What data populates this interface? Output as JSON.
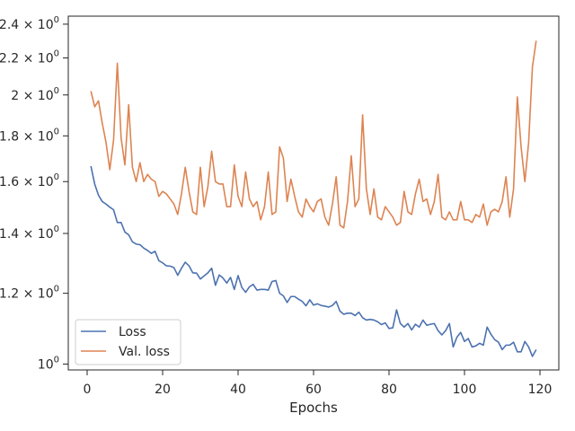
{
  "chart_data": {
    "type": "line",
    "xlabel": "Epochs",
    "ylabel": "",
    "title": "",
    "y_scale": "log",
    "xlim": [
      -5,
      125
    ],
    "ylim": [
      0.985,
      2.45
    ],
    "x_ticks": [
      0,
      20,
      40,
      60,
      80,
      100,
      120
    ],
    "y_ticks": [
      {
        "value": 1.0,
        "label_base": "10",
        "label_exp": "0"
      },
      {
        "value": 1.2,
        "label_base": "1.2 × 10",
        "label_exp": "0"
      },
      {
        "value": 1.4,
        "label_base": "1.4 × 10",
        "label_exp": "0"
      },
      {
        "value": 1.6,
        "label_base": "1.6 × 10",
        "label_exp": "0"
      },
      {
        "value": 1.8,
        "label_base": "1.8 × 10",
        "label_exp": "0"
      },
      {
        "value": 2.0,
        "label_base": "2 × 10",
        "label_exp": "0"
      },
      {
        "value": 2.2,
        "label_base": "2.2 × 10",
        "label_exp": "0"
      },
      {
        "value": 2.4,
        "label_base": "2.4 × 10",
        "label_exp": "0"
      }
    ],
    "grid": false,
    "legend_position": "lower-left",
    "series": [
      {
        "name": "Loss",
        "color": "#4c72b0",
        "x_start": 1,
        "values": [
          1.665,
          1.59,
          1.545,
          1.52,
          1.51,
          1.498,
          1.488,
          1.44,
          1.44,
          1.405,
          1.395,
          1.37,
          1.362,
          1.36,
          1.348,
          1.34,
          1.33,
          1.337,
          1.305,
          1.298,
          1.288,
          1.287,
          1.282,
          1.257,
          1.28,
          1.3,
          1.288,
          1.265,
          1.264,
          1.245,
          1.255,
          1.265,
          1.28,
          1.225,
          1.258,
          1.248,
          1.232,
          1.25,
          1.212,
          1.256,
          1.218,
          1.203,
          1.22,
          1.228,
          1.21,
          1.212,
          1.212,
          1.21,
          1.237,
          1.24,
          1.2,
          1.192,
          1.172,
          1.19,
          1.19,
          1.182,
          1.175,
          1.162,
          1.18,
          1.164,
          1.168,
          1.163,
          1.161,
          1.158,
          1.163,
          1.175,
          1.146,
          1.137,
          1.14,
          1.14,
          1.133,
          1.143,
          1.127,
          1.12,
          1.122,
          1.12,
          1.115,
          1.107,
          1.112,
          1.096,
          1.098,
          1.15,
          1.11,
          1.1,
          1.11,
          1.092,
          1.108,
          1.1,
          1.12,
          1.105,
          1.108,
          1.11,
          1.09,
          1.078,
          1.09,
          1.11,
          1.045,
          1.072,
          1.085,
          1.06,
          1.068,
          1.045,
          1.048,
          1.055,
          1.05,
          1.1,
          1.08,
          1.065,
          1.058,
          1.038,
          1.05,
          1.05,
          1.058,
          1.032,
          1.032,
          1.06,
          1.045,
          1.02,
          1.038
        ]
      },
      {
        "name": "Val. loss",
        "color": "#dd8452",
        "x_start": 1,
        "values": [
          2.02,
          1.94,
          1.97,
          1.86,
          1.77,
          1.65,
          1.78,
          2.17,
          1.79,
          1.67,
          1.95,
          1.66,
          1.6,
          1.68,
          1.6,
          1.63,
          1.61,
          1.6,
          1.54,
          1.56,
          1.55,
          1.53,
          1.51,
          1.47,
          1.55,
          1.66,
          1.56,
          1.48,
          1.47,
          1.66,
          1.5,
          1.58,
          1.73,
          1.6,
          1.59,
          1.59,
          1.5,
          1.5,
          1.67,
          1.54,
          1.5,
          1.64,
          1.53,
          1.5,
          1.52,
          1.45,
          1.5,
          1.64,
          1.47,
          1.48,
          1.75,
          1.7,
          1.52,
          1.61,
          1.54,
          1.48,
          1.46,
          1.53,
          1.5,
          1.48,
          1.52,
          1.53,
          1.46,
          1.43,
          1.51,
          1.62,
          1.43,
          1.42,
          1.52,
          1.71,
          1.5,
          1.53,
          1.9,
          1.57,
          1.47,
          1.57,
          1.46,
          1.45,
          1.5,
          1.48,
          1.46,
          1.43,
          1.44,
          1.56,
          1.48,
          1.47,
          1.55,
          1.61,
          1.52,
          1.53,
          1.47,
          1.52,
          1.63,
          1.46,
          1.45,
          1.48,
          1.45,
          1.45,
          1.52,
          1.45,
          1.45,
          1.44,
          1.47,
          1.46,
          1.51,
          1.43,
          1.48,
          1.49,
          1.48,
          1.52,
          1.62,
          1.46,
          1.57,
          1.99,
          1.75,
          1.6,
          1.77,
          2.15,
          2.3
        ]
      }
    ]
  }
}
